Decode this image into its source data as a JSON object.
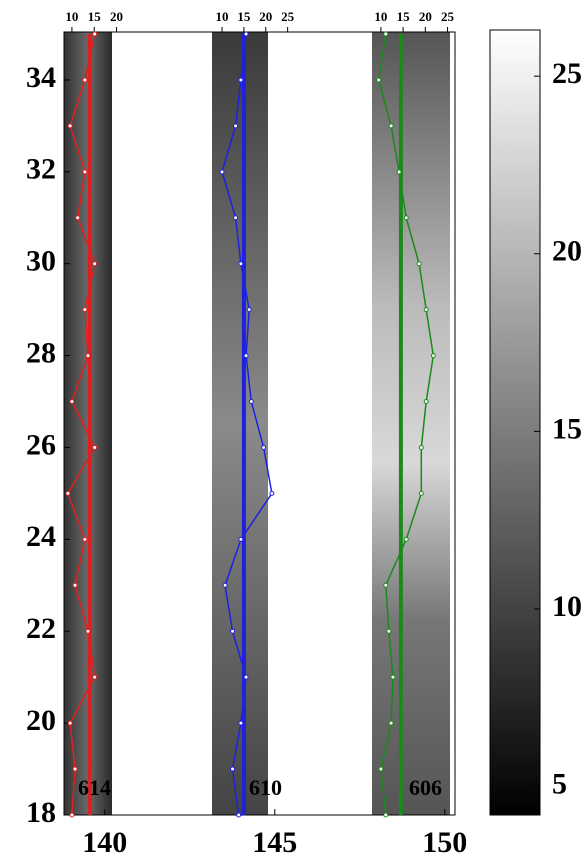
{
  "chart_data": {
    "type": "strip-profile",
    "xlim": [
      138.8,
      150.3
    ],
    "xticks": [
      140,
      145,
      150
    ],
    "ylim": [
      18,
      35
    ],
    "yticks": [
      18,
      20,
      22,
      24,
      26,
      28,
      30,
      32,
      34
    ],
    "y": [
      18,
      19,
      20,
      21,
      22,
      23,
      24,
      25,
      26,
      27,
      28,
      29,
      30,
      31,
      32,
      33,
      34,
      35
    ],
    "strips": [
      {
        "label": "614",
        "color": "#e02020",
        "xlim": [
          8,
          21
        ],
        "xticks": [
          10,
          15,
          20
        ],
        "reference": 14,
        "values": [
          10.0,
          10.7,
          9.6,
          15.1,
          13.6,
          10.7,
          12.9,
          9.1,
          15.1,
          10.0,
          13.6,
          12.9,
          15.1,
          11.3,
          12.9,
          9.6,
          12.9,
          15.1
        ]
      },
      {
        "label": "610",
        "color": "#2020e0",
        "xlim": [
          7.7,
          26
        ],
        "xticks": [
          10,
          15,
          20,
          25
        ],
        "reference": 15,
        "values": [
          13.8,
          12.4,
          14.3,
          15.5,
          12.4,
          10.7,
          14.3,
          21.4,
          19.5,
          16.7,
          15.5,
          16.2,
          14.3,
          13.1,
          10.0,
          13.1,
          14.3,
          15.5
        ]
      },
      {
        "label": "606",
        "color": "#1a8a1a",
        "xlim": [
          8,
          26
        ],
        "xticks": [
          10,
          15,
          20,
          25
        ],
        "reference": 14.5,
        "values": [
          11.1,
          10.0,
          12.3,
          12.7,
          11.8,
          11.1,
          15.7,
          19.1,
          19.1,
          20.2,
          21.8,
          20.2,
          18.6,
          15.7,
          14.1,
          12.3,
          9.5,
          11.1
        ]
      }
    ],
    "colorbar": {
      "lim": [
        4.2,
        26.3
      ],
      "ticks": [
        5,
        10,
        15,
        20,
        25
      ]
    }
  }
}
